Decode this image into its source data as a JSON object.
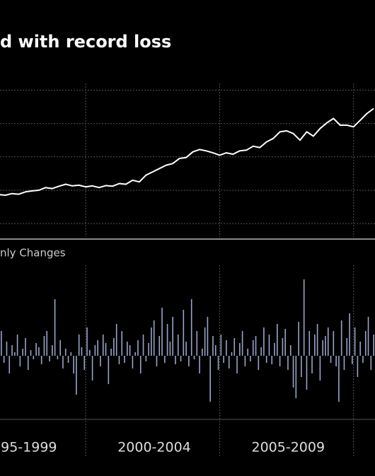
{
  "chart_data": [
    {
      "type": "line",
      "title": "d with record loss",
      "color": "#ffffff",
      "grid": true,
      "xlim": [
        1996.8,
        2010.8
      ],
      "xticks": [
        2000,
        2005,
        2010
      ],
      "ylim": [
        0.6,
        5.2
      ],
      "yticks": [
        1,
        2,
        3,
        4,
        5
      ],
      "x": [
        1996.75,
        1997,
        1997.25,
        1997.5,
        1997.75,
        1998,
        1998.25,
        1998.5,
        1998.75,
        1999,
        1999.25,
        1999.5,
        1999.75,
        2000,
        2000.25,
        2000.5,
        2000.75,
        2001,
        2001.25,
        2001.5,
        2001.75,
        2002,
        2002.25,
        2002.5,
        2002.75,
        2003,
        2003.25,
        2003.5,
        2003.75,
        2004,
        2004.25,
        2004.5,
        2004.75,
        2005,
        2005.25,
        2005.5,
        2005.75,
        2006,
        2006.25,
        2006.5,
        2006.75,
        2007,
        2007.25,
        2007.5,
        2007.75,
        2008,
        2008.25,
        2008.5,
        2008.75,
        2009,
        2009.25,
        2009.5,
        2009.75,
        2010,
        2010.25,
        2010.5,
        2010.75
      ],
      "values": [
        1.87,
        1.85,
        1.9,
        1.88,
        1.95,
        1.98,
        2.0,
        2.08,
        2.05,
        2.12,
        2.18,
        2.13,
        2.15,
        2.1,
        2.13,
        2.08,
        2.14,
        2.12,
        2.2,
        2.18,
        2.3,
        2.25,
        2.45,
        2.55,
        2.65,
        2.75,
        2.8,
        2.95,
        2.98,
        3.15,
        3.22,
        3.18,
        3.12,
        3.05,
        3.12,
        3.08,
        3.18,
        3.2,
        3.32,
        3.28,
        3.45,
        3.55,
        3.75,
        3.78,
        3.7,
        3.5,
        3.75,
        3.62,
        3.85,
        4.02,
        4.15,
        3.95,
        3.95,
        3.9,
        4.1,
        4.3,
        4.45
      ]
    },
    {
      "type": "bar",
      "title": "nly Changes",
      "color": "#9aa3c8",
      "xlim": [
        1996.8,
        2010.8
      ],
      "xticks": [
        2000,
        2005,
        2010
      ],
      "ylim": [
        -90,
        128
      ],
      "period_labels": [
        "95-1999",
        "2000-2004",
        "2005-2009"
      ],
      "values": [
        35,
        -10,
        20,
        -25,
        15,
        5,
        30,
        -15,
        10,
        25,
        -20,
        8,
        -5,
        18,
        12,
        -12,
        28,
        35,
        -8,
        15,
        80,
        -5,
        22,
        -18,
        10,
        -10,
        5,
        -25,
        -55,
        30,
        12,
        -20,
        40,
        8,
        -35,
        15,
        22,
        -15,
        30,
        18,
        -40,
        10,
        25,
        45,
        -12,
        35,
        -10,
        20,
        15,
        -18,
        5,
        22,
        -25,
        30,
        -8,
        18,
        40,
        50,
        -15,
        28,
        68,
        -10,
        45,
        20,
        55,
        -12,
        30,
        -8,
        65,
        20,
        -15,
        80,
        -5,
        35,
        -25,
        10,
        40,
        55,
        -65,
        28,
        15,
        -20,
        30,
        -10,
        22,
        -18,
        5,
        25,
        -25,
        18,
        35,
        -15,
        10,
        -8,
        22,
        28,
        -20,
        12,
        40,
        -10,
        30,
        -12,
        18,
        45,
        -15,
        25,
        38,
        -20,
        15,
        -45,
        -60,
        48,
        -30,
        108,
        -48,
        35,
        -25,
        30,
        45,
        -35,
        22,
        28,
        40,
        -10,
        35,
        -15,
        -65,
        50,
        -20,
        25,
        60,
        -12,
        40,
        -30,
        20,
        -10,
        35,
        55,
        -20,
        30
      ]
    }
  ]
}
